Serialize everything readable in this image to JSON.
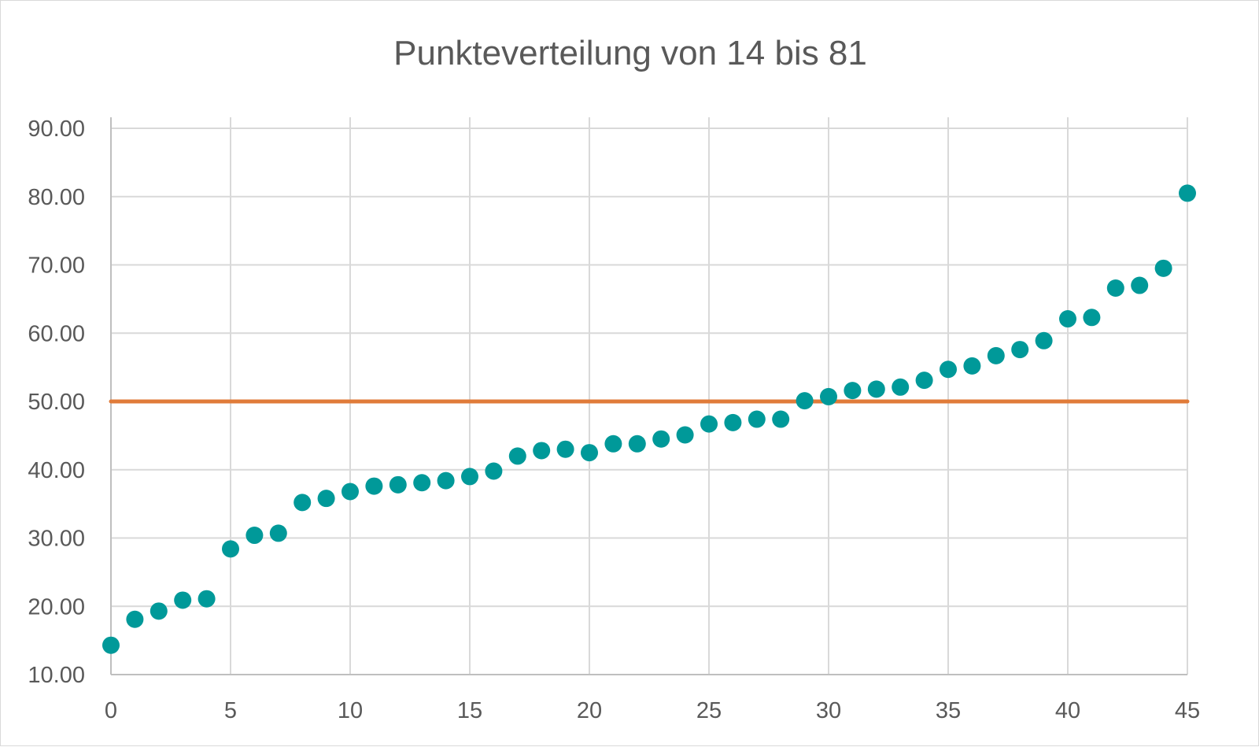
{
  "chart_data": {
    "type": "scatter",
    "title": "Punkteverteilung von 14 bis 81",
    "xlabel": "",
    "ylabel": "",
    "xlim": [
      0,
      45
    ],
    "ylim": [
      10,
      90
    ],
    "x_ticks": [
      "0",
      "5",
      "10",
      "15",
      "20",
      "25",
      "30",
      "35",
      "40",
      "45"
    ],
    "y_ticks": [
      "10.00",
      "20.00",
      "30.00",
      "40.00",
      "50.00",
      "60.00",
      "70.00",
      "80.00",
      "90.00"
    ],
    "grid": true,
    "legend": "none",
    "series": [
      {
        "color": "#009999",
        "x": [
          0,
          1,
          2,
          3,
          4,
          5,
          6,
          7,
          8,
          9,
          10,
          11,
          12,
          13,
          14,
          15,
          16,
          17,
          18,
          19,
          20,
          21,
          22,
          23,
          24,
          25,
          26,
          27,
          28,
          29,
          30,
          31,
          32,
          33,
          34,
          35,
          36,
          37,
          38,
          39,
          40,
          41,
          42,
          43,
          44,
          45
        ],
        "y": [
          14.3,
          18.1,
          19.3,
          20.9,
          21.1,
          28.4,
          30.4,
          30.7,
          35.2,
          35.8,
          36.8,
          37.6,
          37.8,
          38.1,
          38.4,
          39.0,
          39.8,
          42.0,
          42.8,
          43.0,
          42.5,
          43.8,
          43.8,
          44.5,
          45.1,
          46.7,
          46.9,
          47.4,
          47.4,
          50.1,
          50.7,
          51.6,
          51.8,
          52.1,
          53.1,
          54.7,
          55.2,
          56.7,
          57.6,
          58.9,
          62.1,
          62.3,
          66.6,
          67.0,
          69.5,
          80.5
        ]
      },
      {
        "color": "#e07b39",
        "x": [
          0,
          45
        ],
        "y": [
          50,
          50
        ]
      }
    ]
  }
}
